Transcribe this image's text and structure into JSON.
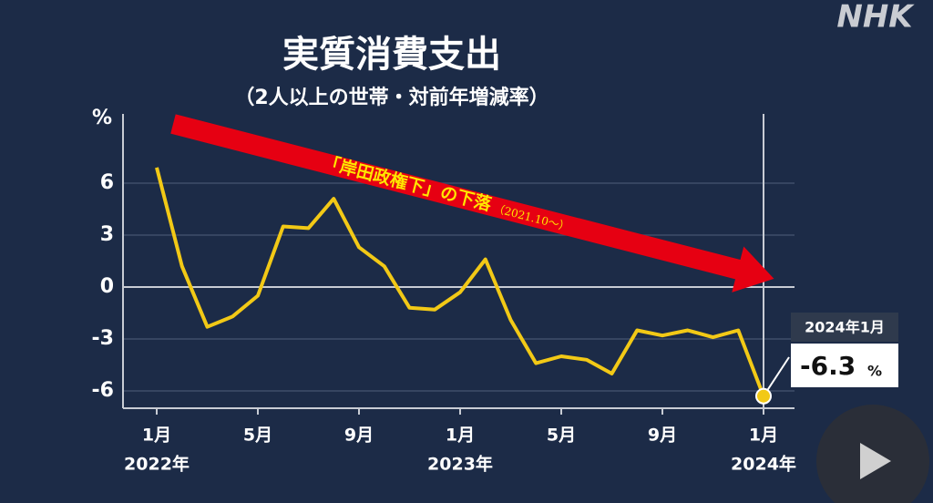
{
  "logo": "NHK",
  "chart_data": {
    "type": "line",
    "title": "実質消費支出",
    "subtitle": "（2人以上の世帯・対前年増減率）",
    "y_unit": "%",
    "categories": [
      "1月",
      null,
      null,
      null,
      "5月",
      null,
      null,
      null,
      "9月",
      null,
      null,
      null,
      "1月",
      null,
      null,
      null,
      "5月",
      null,
      null,
      null,
      "9月",
      null,
      null,
      null,
      "1月"
    ],
    "category_years": [
      "2022年",
      null,
      null,
      null,
      null,
      null,
      null,
      null,
      null,
      null,
      null,
      null,
      "2023年",
      null,
      null,
      null,
      null,
      null,
      null,
      null,
      null,
      null,
      null,
      null,
      "2024年"
    ],
    "values": [
      6.9,
      1.2,
      -2.3,
      -1.7,
      -0.5,
      3.5,
      3.4,
      5.1,
      2.3,
      1.2,
      -1.2,
      -1.3,
      -0.3,
      1.6,
      -1.9,
      -4.4,
      -4.0,
      -4.2,
      -5.0,
      -2.5,
      -2.8,
      -2.5,
      -2.9,
      -2.5,
      -6.3
    ],
    "color": "#f2c916",
    "ylim": [
      -7,
      10
    ],
    "yticks": [
      6,
      3,
      0,
      -3,
      -6
    ],
    "grid": true,
    "annotation": {
      "text": "「岸田政権下」の下落",
      "note": "（2021.10〜）",
      "color": "#e60012"
    },
    "callout": {
      "label": "2024年1月",
      "unit": "%"
    }
  }
}
